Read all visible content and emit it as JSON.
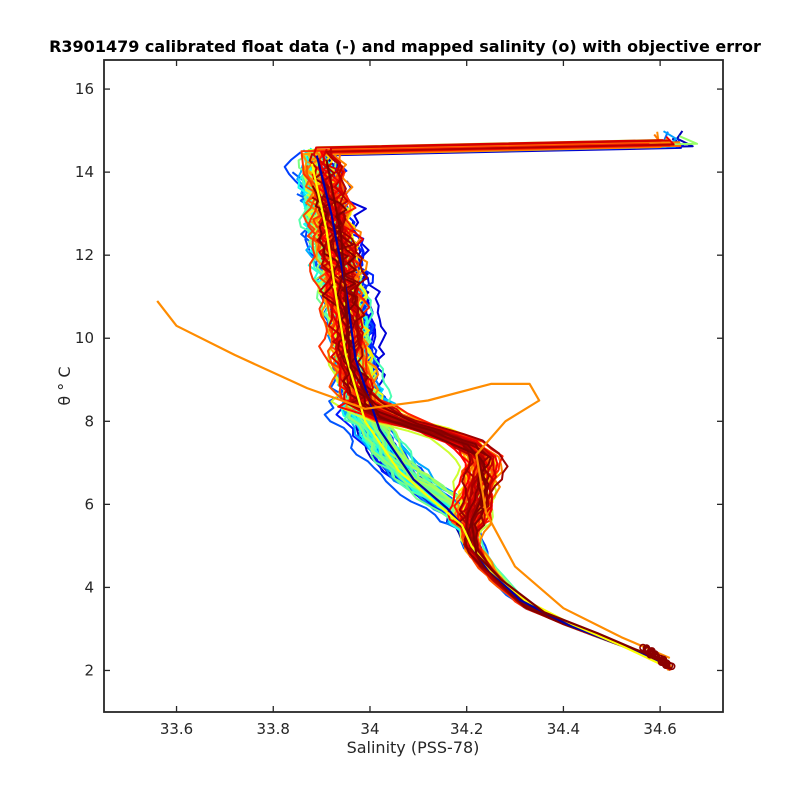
{
  "chart_data": {
    "type": "line",
    "title": "R3901479 calibrated float data (-) and mapped salinity (o) with objective error",
    "xlabel": "Salinity (PSS-78)",
    "ylabel": "θ ° C",
    "xlim": [
      33.45,
      34.73
    ],
    "ylim": [
      1.0,
      16.7
    ],
    "xticks": [
      "33.6",
      "33.8",
      "34",
      "34.2",
      "34.4",
      "34.6"
    ],
    "yticks": [
      "2",
      "4",
      "6",
      "8",
      "10",
      "12",
      "14",
      "16"
    ],
    "grid": false,
    "legend": "none",
    "colormap": "jet",
    "n_profiles": 150,
    "series_samples": [
      {
        "profile": "early",
        "color": "#0000aa",
        "x": [
          33.89,
          33.92,
          33.95,
          33.97,
          34.02,
          34.09,
          34.16,
          34.19,
          34.21,
          34.24,
          34.31,
          34.41,
          34.52,
          34.6
        ],
        "y": [
          14.4,
          13.0,
          11.2,
          9.5,
          7.8,
          6.6,
          5.9,
          5.5,
          5.0,
          4.5,
          3.7,
          3.1,
          2.6,
          2.2
        ]
      },
      {
        "profile": "middle",
        "color": "#ffff00",
        "x": [
          33.88,
          33.91,
          33.93,
          33.95,
          33.99,
          34.06,
          34.14,
          34.19,
          34.21,
          34.25,
          34.32,
          34.42,
          34.52,
          34.61
        ],
        "y": [
          14.2,
          12.6,
          11.0,
          9.6,
          8.0,
          6.8,
          6.0,
          5.5,
          5.0,
          4.4,
          3.7,
          3.1,
          2.6,
          2.1
        ]
      },
      {
        "profile": "late",
        "color": "#800000",
        "x": [
          33.91,
          33.94,
          33.95,
          33.96,
          34.02,
          34.12,
          34.22,
          34.24,
          34.21,
          34.22,
          34.27,
          34.36,
          34.47,
          34.55,
          34.62
        ],
        "y": [
          14.3,
          12.5,
          11.0,
          9.3,
          8.1,
          7.7,
          7.2,
          6.4,
          5.6,
          4.8,
          4.2,
          3.4,
          2.9,
          2.5,
          2.2
        ]
      },
      {
        "profile": "fresh-surface outlier",
        "color": "#ff8c00",
        "x": [
          33.56,
          33.6,
          33.72,
          33.87,
          33.99,
          34.12,
          34.25,
          34.33,
          34.35,
          34.28,
          34.22,
          34.24,
          34.3,
          34.4,
          34.52,
          34.62
        ],
        "y": [
          10.9,
          10.3,
          9.6,
          8.8,
          8.3,
          8.5,
          8.9,
          8.9,
          8.5,
          8.0,
          7.2,
          5.8,
          4.5,
          3.5,
          2.8,
          2.3
        ]
      }
    ]
  }
}
